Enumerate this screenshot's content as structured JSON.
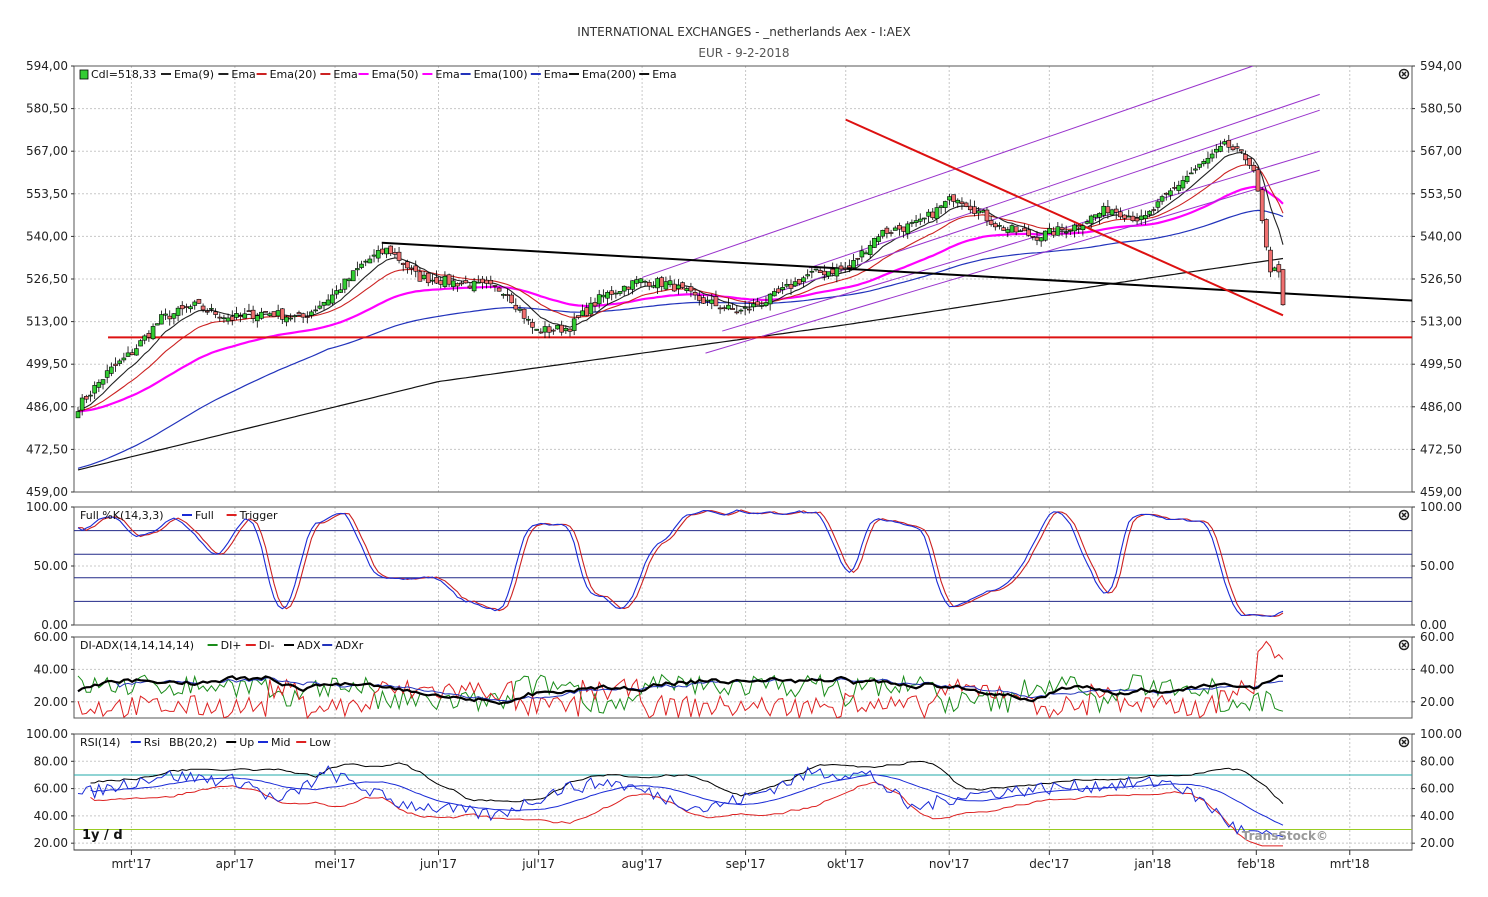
{
  "title": "INTERNATIONAL EXCHANGES - _netherlands Aex - I:AEX",
  "subtitle": "EUR - 9-2-2018",
  "timeframe_label": "1y / d",
  "brand": "TransStock©",
  "colors": {
    "bull": "#33cc33",
    "bear": "#f07070",
    "ema9": "#222222",
    "ema20": "#cc2222",
    "ema50": "#ff00ff",
    "ema100": "#2233bb",
    "ema200": "#111111",
    "channel": "#9933cc",
    "trend_red": "#dd1111",
    "trend_black": "#000000",
    "grid": "#c8c8c8",
    "di_plus": "#1a8c1a",
    "di_minus": "#dd2222",
    "adx": "#000000",
    "adxr": "#2233bb",
    "rsi": "#1a2bd6",
    "bb_up": "#000000",
    "bb_mid": "#1a2bd6",
    "bb_low": "#dd2222",
    "rsi_70": "#22aaaa",
    "rsi_30": "#99cc22"
  },
  "x_axis": {
    "labels": [
      "mrt'17",
      "apr'17",
      "mei'17",
      "jun'17",
      "jul'17",
      "aug'17",
      "sep'17",
      "okt'17",
      "nov'17",
      "dec'17",
      "jan'18",
      "feb'18",
      "mrt'18"
    ]
  },
  "panels": {
    "price": {
      "legend": [
        {
          "text": "Cdl=518,33",
          "swatch": "candle"
        },
        {
          "text": "Ema(9)",
          "swatch": "#222222"
        },
        {
          "text": "Ema",
          "swatch": "#222222"
        },
        {
          "text": "Ema(20)",
          "swatch": "#cc2222"
        },
        {
          "text": "Ema",
          "swatch": "#cc2222"
        },
        {
          "text": "Ema(50)",
          "swatch": "#ff00ff"
        },
        {
          "text": "Ema",
          "swatch": "#ff00ff"
        },
        {
          "text": "Ema(100)",
          "swatch": "#2233bb"
        },
        {
          "text": "Ema",
          "swatch": "#2233bb"
        },
        {
          "text": "Ema(200)",
          "swatch": "#111111"
        },
        {
          "text": "Ema",
          "swatch": "#111111"
        }
      ],
      "y_ticks": [
        "594,00",
        "580,50",
        "567,00",
        "553,50",
        "540,00",
        "526,50",
        "513,00",
        "499,50",
        "486,00",
        "472,50",
        "459,00"
      ],
      "ylim": [
        459,
        594
      ]
    },
    "stoch": {
      "legend": [
        {
          "text": "Full %K(14,3,3)",
          "swatch": null
        },
        {
          "text": "Full",
          "swatch": "#1a2bd6"
        },
        {
          "text": "Trigger",
          "swatch": "#dd2222"
        }
      ],
      "y_ticks": [
        "100.00",
        "50.00",
        "0.00"
      ],
      "ylim": [
        0,
        100
      ]
    },
    "adx": {
      "legend": [
        {
          "text": "DI-ADX(14,14,14,14)",
          "swatch": null
        },
        {
          "text": "DI+",
          "swatch": "#1a8c1a"
        },
        {
          "text": "DI-",
          "swatch": "#dd2222"
        },
        {
          "text": "ADX",
          "swatch": "#000000"
        },
        {
          "text": "ADXr",
          "swatch": "#2233bb"
        }
      ],
      "y_ticks": [
        "60.00",
        "40.00",
        "20.00"
      ],
      "ylim": [
        10,
        60
      ]
    },
    "rsi": {
      "legend": [
        {
          "text": "RSI(14)",
          "swatch": null
        },
        {
          "text": "Rsi",
          "swatch": "#1a2bd6"
        },
        {
          "text": "BB(20,2)",
          "swatch": null
        },
        {
          "text": "Up",
          "swatch": "#000000"
        },
        {
          "text": "Mid",
          "swatch": "#1a2bd6"
        },
        {
          "text": "Low",
          "swatch": "#dd2222"
        }
      ],
      "y_ticks": [
        "100.00",
        "80.00",
        "60.00",
        "40.00",
        "20.00"
      ],
      "ylim": [
        15,
        100
      ]
    }
  },
  "chart_data": {
    "type": "candlestick",
    "title": "INTERNATIONAL EXCHANGES - _netherlands Aex - I:AEX",
    "subtitle": "EUR - 9-2-2018",
    "last_close": 518.33,
    "close_keypoints": [
      [
        "2017-02-13",
        486
      ],
      [
        "2017-02-22",
        497
      ],
      [
        "2017-03-01",
        503
      ],
      [
        "2017-03-10",
        514
      ],
      [
        "2017-03-20",
        518
      ],
      [
        "2017-03-31",
        514
      ],
      [
        "2017-04-10",
        516
      ],
      [
        "2017-04-21",
        514
      ],
      [
        "2017-05-01",
        522
      ],
      [
        "2017-05-10",
        532
      ],
      [
        "2017-05-17",
        536
      ],
      [
        "2017-05-26",
        527
      ],
      [
        "2017-06-09",
        525
      ],
      [
        "2017-06-21",
        523
      ],
      [
        "2017-06-30",
        510
      ],
      [
        "2017-07-10",
        511
      ],
      [
        "2017-07-20",
        521
      ],
      [
        "2017-07-31",
        526
      ],
      [
        "2017-08-09",
        525
      ],
      [
        "2017-08-18",
        520
      ],
      [
        "2017-08-30",
        516
      ],
      [
        "2017-09-08",
        520
      ],
      [
        "2017-09-20",
        528
      ],
      [
        "2017-10-02",
        530
      ],
      [
        "2017-10-11",
        541
      ],
      [
        "2017-10-23",
        544
      ],
      [
        "2017-11-03",
        553
      ],
      [
        "2017-11-16",
        543
      ],
      [
        "2017-11-27",
        540
      ],
      [
        "2017-12-08",
        543
      ],
      [
        "2017-12-19",
        549
      ],
      [
        "2017-12-29",
        545
      ],
      [
        "2018-01-10",
        558
      ],
      [
        "2018-01-23",
        569
      ],
      [
        "2018-01-31",
        563
      ],
      [
        "2018-02-02",
        550
      ],
      [
        "2018-02-05",
        530
      ],
      [
        "2018-02-06",
        525
      ],
      [
        "2018-02-07",
        535
      ],
      [
        "2018-02-09",
        518.33
      ]
    ],
    "ema200_keypoints": [
      [
        "2017-02-13",
        466
      ],
      [
        "2017-06-01",
        494
      ],
      [
        "2017-10-01",
        512
      ],
      [
        "2018-01-01",
        527
      ],
      [
        "2018-02-09",
        533
      ]
    ],
    "trendlines": [
      {
        "name": "black-resistance",
        "color": "#000000",
        "from": [
          "2017-05-15",
          538
        ],
        "to": [
          "2018-03-31",
          519
        ]
      },
      {
        "name": "red-support",
        "color": "#dd1111",
        "from": [
          "2017-02-22",
          508
        ],
        "to": [
          "2018-03-31",
          508
        ]
      },
      {
        "name": "red-downtrend",
        "color": "#dd1111",
        "from": [
          "2017-10-01",
          577
        ],
        "to": [
          "2018-02-09",
          515
        ]
      }
    ],
    "stochastic_keypoints": [
      [
        0,
        80
      ],
      [
        6,
        93
      ],
      [
        14,
        75
      ],
      [
        22,
        90
      ],
      [
        32,
        60
      ],
      [
        40,
        90
      ],
      [
        48,
        10
      ],
      [
        56,
        85
      ],
      [
        62,
        95
      ],
      [
        72,
        40
      ],
      [
        84,
        40
      ],
      [
        92,
        20
      ],
      [
        100,
        12
      ],
      [
        108,
        85
      ],
      [
        116,
        85
      ],
      [
        122,
        25
      ],
      [
        130,
        15
      ],
      [
        138,
        70
      ],
      [
        146,
        95
      ],
      [
        162,
        95
      ],
      [
        176,
        95
      ],
      [
        184,
        45
      ],
      [
        190,
        90
      ],
      [
        200,
        85
      ],
      [
        208,
        15
      ],
      [
        220,
        30
      ],
      [
        234,
        95
      ],
      [
        246,
        25
      ],
      [
        252,
        95
      ],
      [
        262,
        90
      ],
      [
        268,
        90
      ],
      [
        278,
        10
      ],
      [
        284,
        8
      ],
      [
        288,
        12
      ]
    ],
    "rsi_keypoints": [
      [
        0,
        55
      ],
      [
        20,
        70
      ],
      [
        40,
        65
      ],
      [
        48,
        50
      ],
      [
        60,
        72
      ],
      [
        76,
        50
      ],
      [
        100,
        40
      ],
      [
        116,
        60
      ],
      [
        128,
        65
      ],
      [
        150,
        45
      ],
      [
        162,
        55
      ],
      [
        176,
        72
      ],
      [
        190,
        70
      ],
      [
        200,
        45
      ],
      [
        212,
        55
      ],
      [
        230,
        60
      ],
      [
        262,
        65
      ],
      [
        270,
        50
      ],
      [
        278,
        30
      ],
      [
        284,
        25
      ]
    ]
  }
}
